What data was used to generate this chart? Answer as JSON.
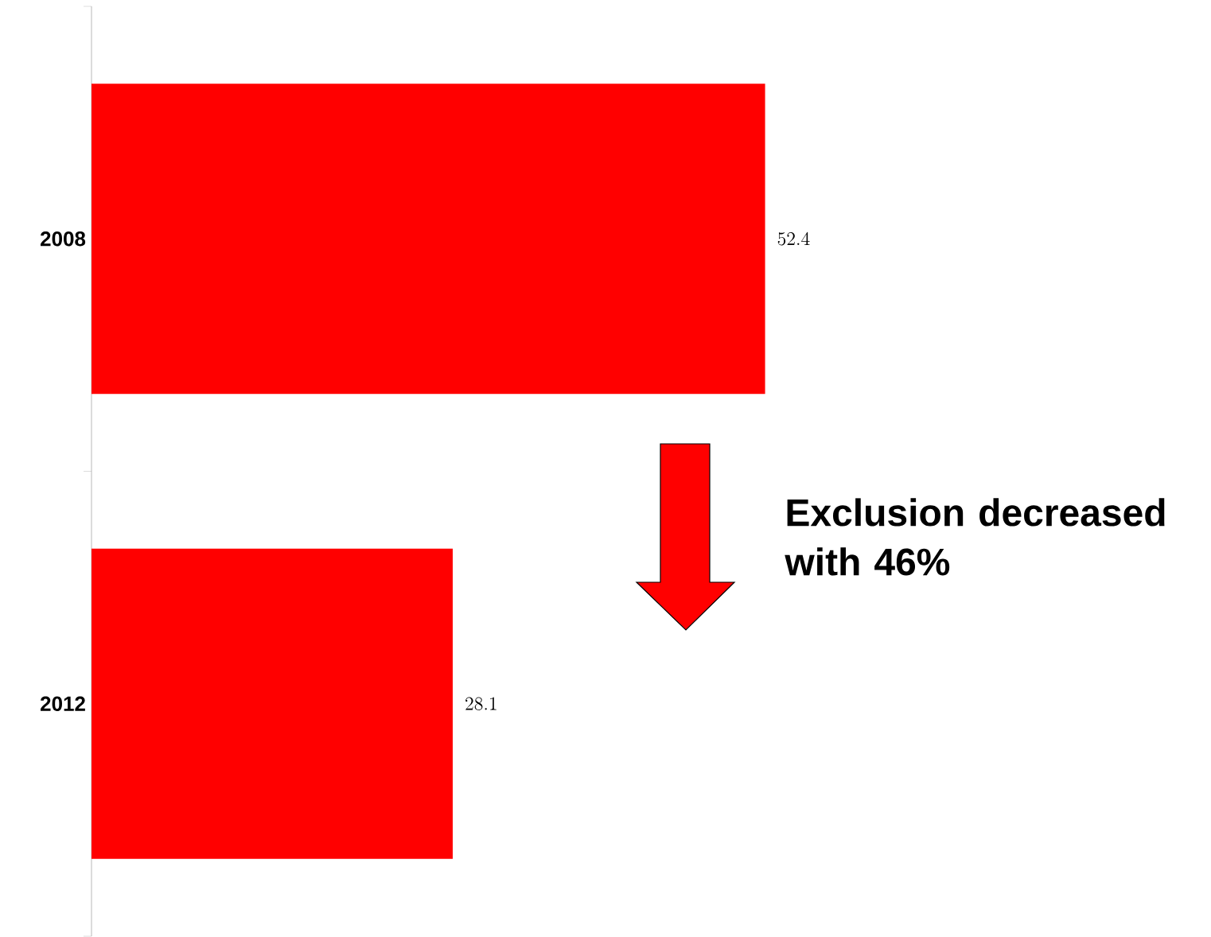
{
  "chart_data": {
    "type": "bar",
    "orientation": "horizontal",
    "categories": [
      "2008",
      "2012"
    ],
    "values": [
      52.4,
      28.1
    ],
    "color": "#ff0000",
    "data_labels": true,
    "annotations": [
      "Exclusion decreased with 46%"
    ]
  }
}
